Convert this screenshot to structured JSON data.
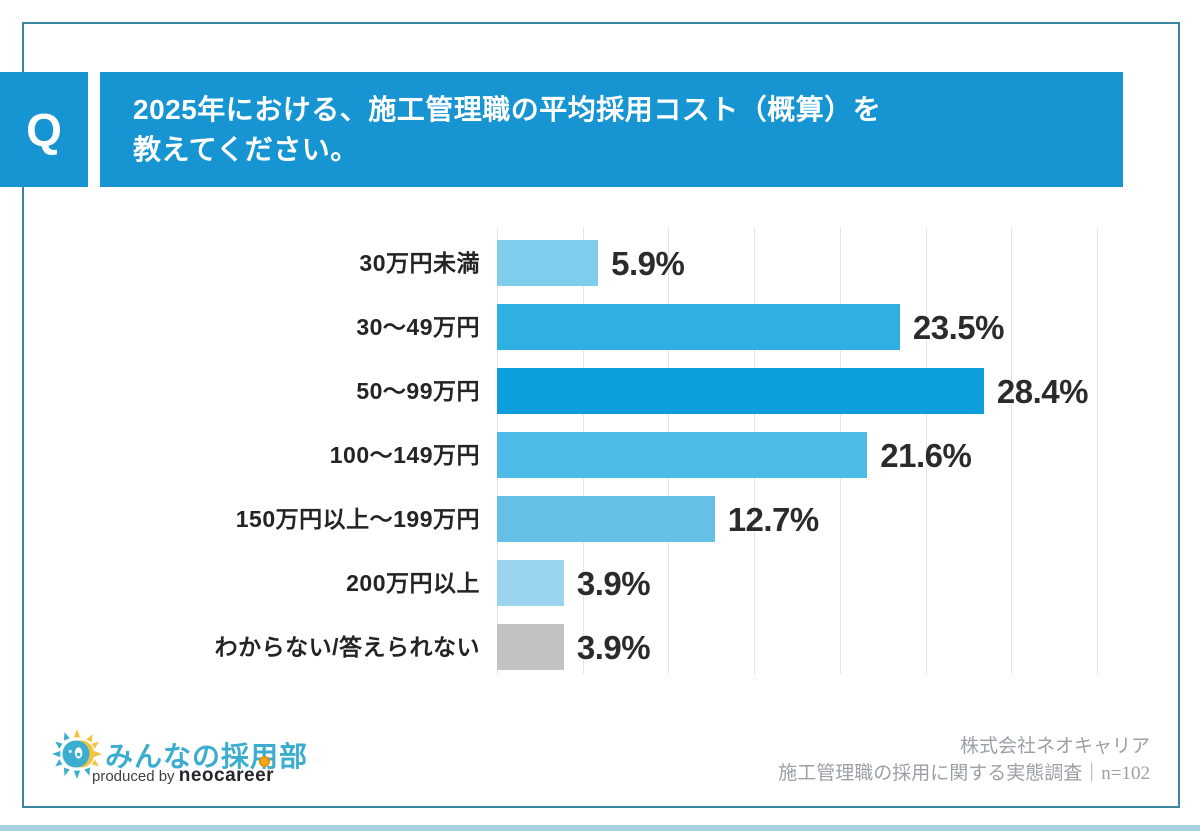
{
  "header": {
    "q_label": "Q",
    "title_line1": "2025年における、施工管理職の平均採用コスト（概算）を",
    "title_line2": "教えてください。"
  },
  "chart_data": {
    "type": "bar",
    "orientation": "horizontal",
    "title": "2025年における、施工管理職の平均採用コスト（概算）を教えてください。",
    "categories": [
      "30万円未満",
      "30〜49万円",
      "50〜99万円",
      "100〜149万円",
      "150万円以上〜199万円",
      "200万円以上",
      "わからない/答えられない"
    ],
    "values": [
      5.9,
      23.5,
      28.4,
      21.6,
      12.7,
      3.9,
      3.9
    ],
    "value_labels": [
      "5.9%",
      "23.5%",
      "28.4%",
      "21.6%",
      "12.7%",
      "3.9%",
      "3.9%"
    ],
    "bar_colors": [
      "#7ecdec",
      "#2fb0e3",
      "#0d9fdd",
      "#4cbbe8",
      "#66c0e6",
      "#9ad4ef",
      "#c2c2c2"
    ],
    "unit": "%",
    "xlim": [
      0,
      35
    ],
    "gridline_step": 5,
    "grid": "vertical",
    "legend": "none"
  },
  "footer": {
    "logo_text": "みんなの採用部",
    "produced_by": "produced by ",
    "producer": "neocareer",
    "source_line1": "株式会社ネオキャリア",
    "source_line2": "施工管理職の採用に関する実態調査｜n=102"
  },
  "colors": {
    "accent_blue": "#1795d3",
    "frame_border": "#3e86a0",
    "gridline": "#e4e4e4",
    "value_text": "#2b2b2b",
    "category_text": "#242424",
    "logo_blue": "#3badcf",
    "logo_yellow": "#f2c43c",
    "logo_orange": "#f4a81d",
    "source_text": "#9aa1a6",
    "bottom_strip": "#a9cfe2"
  }
}
